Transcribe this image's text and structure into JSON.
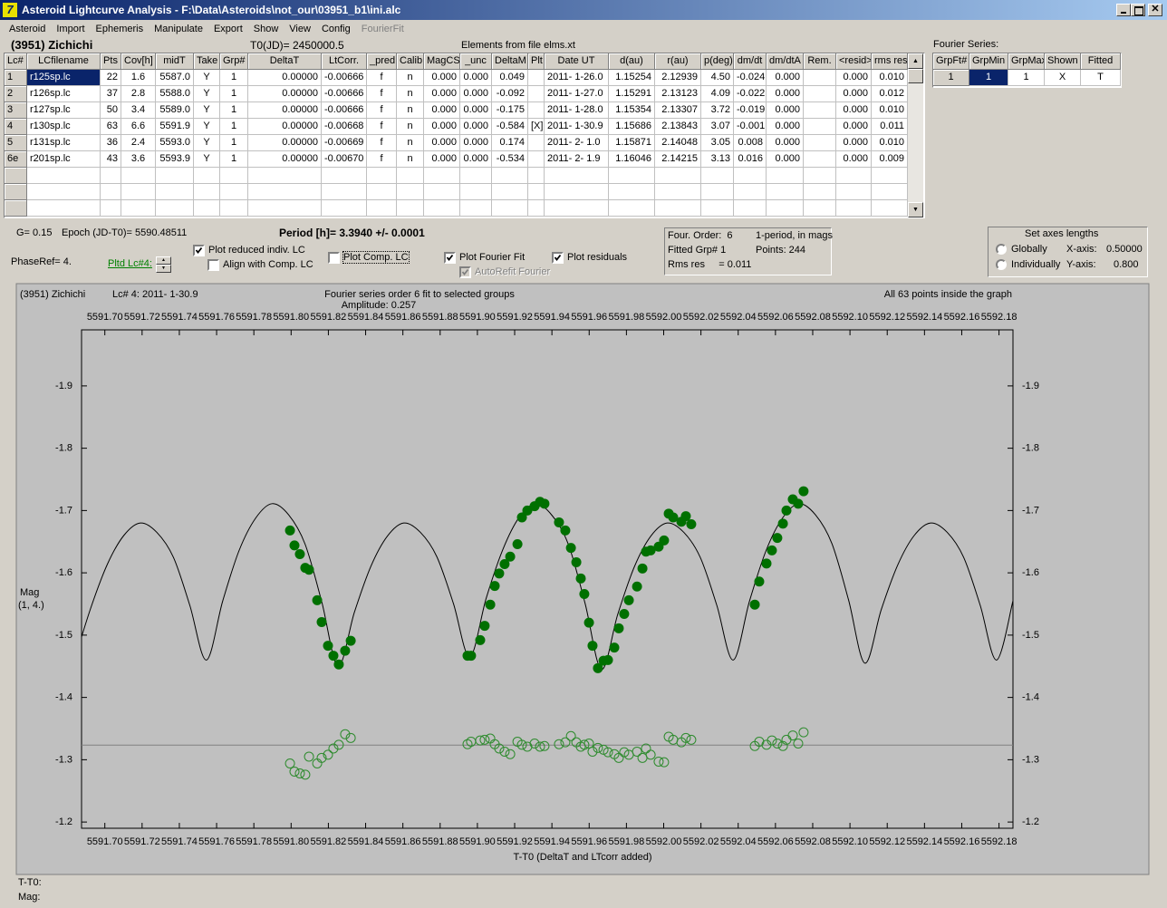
{
  "window": {
    "title": "Asteroid Lightcurve Analysis - F:\\Data\\Asteroids\\not_our\\03951_b1\\ini.alc",
    "menu": [
      "Asteroid",
      "Import",
      "Ephemeris",
      "Manipulate",
      "Export",
      "Show",
      "View",
      "Config",
      "FourierFit"
    ]
  },
  "header": {
    "asteroid": "(3951) Zichichi",
    "t0": "T0(JD)= 2450000.5",
    "elements": "Elements from file elms.xt"
  },
  "table": {
    "columns": [
      "Lc#",
      "LCfilename",
      "Pts",
      "Cov[h]",
      "midT",
      "Take",
      "Grp#",
      "DeltaT",
      "LtCorr.",
      "_pred.",
      "Calib",
      "MagCS",
      "_unc",
      "DeltaM",
      "Plt",
      "Date UT",
      "d(au)",
      "r(au)",
      "p(deg)",
      "dm/dt",
      "dm/dtA",
      "Rem.",
      "<resid>",
      "rms res"
    ],
    "selected_row": 0,
    "rows": [
      [
        "1",
        "r125sp.lc",
        "22",
        "1.6",
        "5587.0",
        "Y",
        "1",
        "0.00000",
        "-0.00666",
        "f",
        "n",
        "0.000",
        "0.000",
        "0.049",
        null,
        "2011- 1-26.0",
        "1.15254",
        "2.12939",
        "4.50",
        "-0.024",
        "0.000",
        null,
        "0.000",
        "0.010"
      ],
      [
        "2",
        "r126sp.lc",
        "37",
        "2.8",
        "5588.0",
        "Y",
        "1",
        "0.00000",
        "-0.00666",
        "f",
        "n",
        "0.000",
        "0.000",
        "-0.092",
        null,
        "2011- 1-27.0",
        "1.15291",
        "2.13123",
        "4.09",
        "-0.022",
        "0.000",
        null,
        "0.000",
        "0.012"
      ],
      [
        "3",
        "r127sp.lc",
        "50",
        "3.4",
        "5589.0",
        "Y",
        "1",
        "0.00000",
        "-0.00666",
        "f",
        "n",
        "0.000",
        "0.000",
        "-0.175",
        null,
        "2011- 1-28.0",
        "1.15354",
        "2.13307",
        "3.72",
        "-0.019",
        "0.000",
        null,
        "0.000",
        "0.010"
      ],
      [
        "4",
        "r130sp.lc",
        "63",
        "6.6",
        "5591.9",
        "Y",
        "1",
        "0.00000",
        "-0.00668",
        "f",
        "n",
        "0.000",
        "0.000",
        "-0.584",
        "[X]",
        "2011- 1-30.9",
        "1.15686",
        "2.13843",
        "3.07",
        "-0.001",
        "0.000",
        null,
        "0.000",
        "0.011"
      ],
      [
        "5",
        "r131sp.lc",
        "36",
        "2.4",
        "5593.0",
        "Y",
        "1",
        "0.00000",
        "-0.00669",
        "f",
        "n",
        "0.000",
        "0.000",
        "0.174",
        null,
        "2011- 2- 1.0",
        "1.15871",
        "2.14048",
        "3.05",
        "0.008",
        "0.000",
        null,
        "0.000",
        "0.010"
      ],
      [
        "6e",
        "r201sp.lc",
        "43",
        "3.6",
        "5593.9",
        "Y",
        "1",
        "0.00000",
        "-0.00670",
        "f",
        "n",
        "0.000",
        "0.000",
        "-0.534",
        null,
        "2011- 2- 1.9",
        "1.16046",
        "2.14215",
        "3.13",
        "0.016",
        "0.000",
        null,
        "0.000",
        "0.009"
      ]
    ]
  },
  "fourier_series": {
    "title": "Fourier Series:",
    "columns": [
      "GrpFt#",
      "GrpMin",
      "GrpMax",
      "Shown",
      "Fitted"
    ],
    "selected_cell": 1,
    "rows": [
      [
        "1",
        "1",
        "1",
        "X",
        "T"
      ]
    ]
  },
  "controls": {
    "g": "G= 0.15",
    "epoch": "Epoch (JD-T0)= 5590.48511",
    "period": "Period [h]= 3.3940 +/- 0.0001",
    "phase_ref": "PhaseRef= 4.",
    "plotted_lc": "Pltd Lc#4:",
    "checkboxes": [
      {
        "label": "Plot reduced indiv. LC",
        "checked": true,
        "enabled": true
      },
      {
        "label": "Align with Comp. LC",
        "checked": false,
        "enabled": true
      },
      {
        "label": "Plot Comp. LC",
        "checked": false,
        "enabled": true
      },
      {
        "label": "Plot Fourier Fit",
        "checked": true,
        "enabled": true
      },
      {
        "label": "AutoRefit Fourier",
        "checked": true,
        "enabled": false
      },
      {
        "label": "Plot residuals",
        "checked": true,
        "enabled": true
      }
    ]
  },
  "fit_info": {
    "lines": [
      "Four. Order:  6",
      "1-period, in mags",
      "Fitted Grp# 1",
      "Points: 244",
      "Rms res     = 0.011"
    ]
  },
  "axes_lengths": {
    "title": "Set axes lengths",
    "options": [
      "Globally",
      "Individually"
    ],
    "x_label": "X-axis:",
    "x_value": "0.50000",
    "y_label": "Y-axis:",
    "y_value": "0.800"
  },
  "chart_data": {
    "type": "scatter",
    "object": "(3951) Zichichi",
    "lc_label": "Lc# 4: 2011- 1-30.9",
    "title": "Fourier series order 6 fit to selected groups",
    "subtitle": "Amplitude: 0.257",
    "annotation": "All 63 points inside the graph",
    "ylabel": "Mag",
    "ylabel_note": "(1, 4.)",
    "xlabel": "T-T0 (DeltaT and LTcorr added)",
    "xlim": [
      5591.6875,
      5592.1875
    ],
    "ylim": [
      -1.19,
      -1.99
    ],
    "grid": false,
    "xticks": [
      {
        "value": 5591.7,
        "label": "5591.70"
      },
      {
        "value": 5591.72,
        "label": "5591.72"
      },
      {
        "value": 5591.74,
        "label": "5591.74"
      },
      {
        "value": 5591.76,
        "label": "5591.76"
      },
      {
        "value": 5591.78,
        "label": "5591.78"
      },
      {
        "value": 5591.8,
        "label": "5591.80"
      },
      {
        "value": 5591.82,
        "label": "5591.82"
      },
      {
        "value": 5591.84,
        "label": "5591.84"
      },
      {
        "value": 5591.86,
        "label": "5591.86"
      },
      {
        "value": 5591.88,
        "label": "5591.88"
      },
      {
        "value": 5591.9,
        "label": "5591.90"
      },
      {
        "value": 5591.92,
        "label": "5591.92"
      },
      {
        "value": 5591.94,
        "label": "5591.94"
      },
      {
        "value": 5591.96,
        "label": "5591.96"
      },
      {
        "value": 5591.98,
        "label": "5591.98"
      },
      {
        "value": 5592.0,
        "label": "5592.00"
      },
      {
        "value": 5592.02,
        "label": "5592.02"
      },
      {
        "value": 5592.04,
        "label": "5592.04"
      },
      {
        "value": 5592.06,
        "label": "5592.06"
      },
      {
        "value": 5592.08,
        "label": "5592.08"
      },
      {
        "value": 5592.1,
        "label": "5592.10"
      },
      {
        "value": 5592.12,
        "label": "5592.12"
      },
      {
        "value": 5592.14,
        "label": "5592.14"
      },
      {
        "value": 5592.16,
        "label": "5592.16"
      },
      {
        "value": 5592.18,
        "label": "5592.18"
      }
    ],
    "yticks": [
      -1.9,
      -1.8,
      -1.7,
      -1.6,
      -1.5,
      -1.4,
      -1.3,
      -1.2
    ],
    "x": [
      5591.7994,
      5591.8018,
      5591.8047,
      5591.8076,
      5591.8096,
      5591.814,
      5591.8164,
      5591.8198,
      5591.8227,
      5591.8256,
      5591.829,
      5591.832,
      5591.8947,
      5591.8966,
      5591.9015,
      5591.9039,
      5591.9069,
      5591.9093,
      5591.9117,
      5591.9146,
      5591.9176,
      5591.9215,
      5591.9239,
      5591.9268,
      5591.9307,
      5591.9336,
      5591.936,
      5591.9438,
      5591.9472,
      5591.9502,
      5591.9531,
      5591.9555,
      5591.9574,
      5591.9599,
      5591.9618,
      5591.9647,
      5591.9677,
      5591.9701,
      5591.9735,
      5591.9759,
      5591.9788,
      5591.9813,
      5591.9857,
      5591.9886,
      5591.9905,
      5591.993,
      5591.9973,
      5592.0002,
      5592.0027,
      5592.0051,
      5592.0095,
      5592.0119,
      5592.0148,
      5592.0489,
      5592.0513,
      5592.0552,
      5592.0581,
      5592.061,
      5592.064,
      5592.0659,
      5592.0693,
      5592.0722,
      5592.0751
    ],
    "series": [
      {
        "color": "#007000",
        "marker": "filled",
        "values": [
          -1.668,
          -1.644,
          -1.63,
          -1.608,
          -1.605,
          -1.556,
          -1.521,
          -1.483,
          -1.467,
          -1.453,
          -1.475,
          -1.491,
          -1.467,
          -1.467,
          -1.492,
          -1.515,
          -1.549,
          -1.579,
          -1.599,
          -1.614,
          -1.626,
          -1.646,
          -1.689,
          -1.7,
          -1.707,
          -1.714,
          -1.711,
          -1.681,
          -1.668,
          -1.64,
          -1.617,
          -1.591,
          -1.566,
          -1.52,
          -1.483,
          -1.447,
          -1.459,
          -1.46,
          -1.48,
          -1.511,
          -1.534,
          -1.556,
          -1.578,
          -1.607,
          -1.634,
          -1.636,
          -1.642,
          -1.652,
          -1.695,
          -1.689,
          -1.682,
          -1.691,
          -1.678,
          -1.549,
          -1.586,
          -1.615,
          -1.636,
          -1.656,
          -1.679,
          -1.7,
          -1.718,
          -1.711,
          -1.731
        ]
      },
      {
        "color": "#2e8b2e",
        "marker": "open",
        "values": [
          -1.294,
          -1.281,
          -1.278,
          -1.276,
          -1.305,
          -1.294,
          -1.303,
          -1.308,
          -1.318,
          -1.324,
          -1.341,
          -1.335,
          -1.325,
          -1.329,
          -1.331,
          -1.332,
          -1.334,
          -1.325,
          -1.318,
          -1.313,
          -1.309,
          -1.329,
          -1.324,
          -1.321,
          -1.326,
          -1.321,
          -1.322,
          -1.325,
          -1.328,
          -1.338,
          -1.328,
          -1.321,
          -1.324,
          -1.326,
          -1.313,
          -1.319,
          -1.316,
          -1.312,
          -1.309,
          -1.303,
          -1.312,
          -1.308,
          -1.313,
          -1.303,
          -1.318,
          -1.308,
          -1.297,
          -1.296,
          -1.337,
          -1.332,
          -1.328,
          -1.335,
          -1.332,
          -1.322,
          -1.329,
          -1.324,
          -1.331,
          -1.326,
          -1.322,
          -1.332,
          -1.339,
          -1.326,
          -1.344
        ]
      }
    ],
    "fit": {
      "color": "#000000",
      "x": [
        5591.6837,
        5591.6925,
        5591.7014,
        5591.7102,
        5591.7191,
        5591.7279,
        5591.7368,
        5591.7456,
        5591.7545,
        5591.7633,
        5591.7721,
        5591.781,
        5591.7898,
        5591.7987,
        5591.8075,
        5591.8164,
        5591.8252,
        5591.834,
        5591.8429,
        5591.8517,
        5591.8605,
        5591.8694,
        5591.8782,
        5591.8871,
        5591.8959,
        5591.9047,
        5591.9136,
        5591.9224,
        5591.9312,
        5591.9401,
        5591.9489,
        5591.9578,
        5591.9666,
        5591.9754,
        5591.9843,
        5591.9931,
        5592.0019,
        5592.0108,
        5592.0196,
        5592.0285,
        5592.0373,
        5592.0461,
        5592.055,
        5592.0638,
        5592.0726,
        5592.0815,
        5592.0903,
        5592.0992,
        5592.108,
        5592.1168,
        5592.1257,
        5592.1345,
        5592.1433,
        5592.1522,
        5592.161,
        5592.1699,
        5592.1787,
        5592.1875
      ],
      "values": [
        -1.46,
        -1.544,
        -1.614,
        -1.66,
        -1.68,
        -1.665,
        -1.625,
        -1.548,
        -1.46,
        -1.555,
        -1.636,
        -1.688,
        -1.711,
        -1.693,
        -1.646,
        -1.554,
        -1.45,
        -1.537,
        -1.611,
        -1.659,
        -1.68,
        -1.665,
        -1.626,
        -1.551,
        -1.465,
        -1.559,
        -1.637,
        -1.689,
        -1.711,
        -1.692,
        -1.645,
        -1.551,
        -1.445,
        -1.534,
        -1.61,
        -1.659,
        -1.68,
        -1.665,
        -1.625,
        -1.548,
        -1.46,
        -1.555,
        -1.636,
        -1.688,
        -1.711,
        -1.693,
        -1.647,
        -1.557,
        -1.455,
        -1.541,
        -1.613,
        -1.66,
        -1.68,
        -1.665,
        -1.625,
        -1.548,
        -1.46,
        -1.555
      ]
    },
    "residual_line": {
      "value": -1.3235,
      "color": "#808080"
    }
  },
  "status": {
    "t_label": "T-T0:",
    "mag_label": "Mag:"
  }
}
